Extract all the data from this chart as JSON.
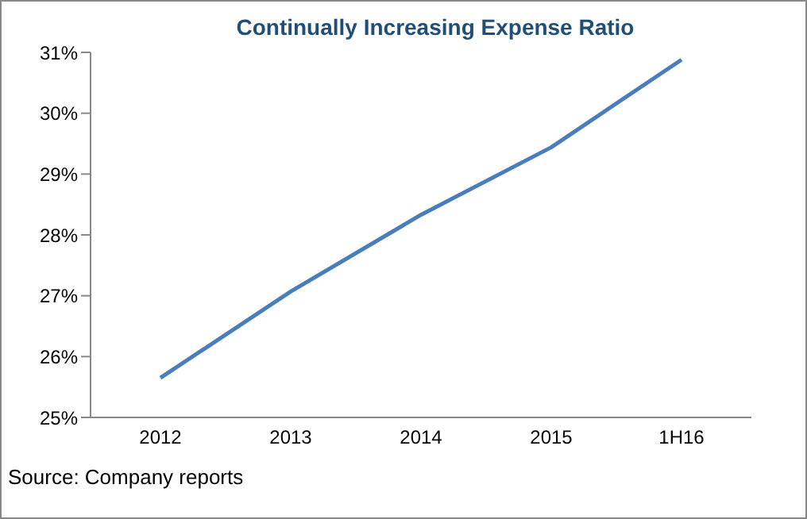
{
  "chart_data": {
    "type": "line",
    "title": "Continually Increasing Expense Ratio",
    "categories": [
      "2012",
      "2013",
      "2014",
      "2015",
      "1H16"
    ],
    "series": [
      {
        "color": "#4a7ebb",
        "values": [
          25.65,
          27.07,
          28.33,
          29.44,
          30.88
        ]
      }
    ],
    "ylim": [
      25,
      31
    ],
    "yticks": [
      {
        "value": 25,
        "label": "25%"
      },
      {
        "value": 26,
        "label": "26%"
      },
      {
        "value": 27,
        "label": "27%"
      },
      {
        "value": 28,
        "label": "28%"
      },
      {
        "value": 29,
        "label": "29%"
      },
      {
        "value": 30,
        "label": "30%"
      },
      {
        "value": 31,
        "label": "31%"
      }
    ],
    "grid": false,
    "legend": false,
    "marker": "none",
    "line_style": "solid",
    "annotations": [
      "Source: Company reports"
    ]
  }
}
